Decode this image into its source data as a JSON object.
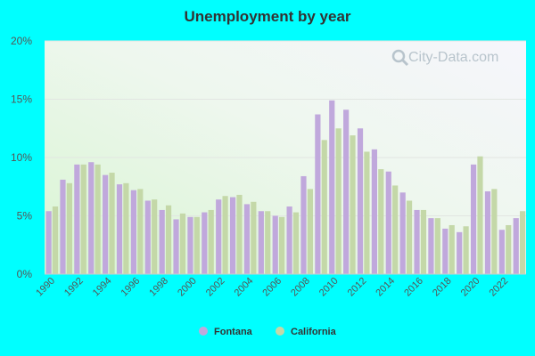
{
  "watermark": "City-Data.com",
  "chart_data": {
    "type": "bar",
    "title": "Unemployment by year",
    "xlabel": "",
    "ylabel": "",
    "ylim": [
      0,
      20
    ],
    "y_ticks": [
      "0%",
      "5%",
      "10%",
      "15%",
      "20%"
    ],
    "x_tick_labels": [
      "1990",
      "1992",
      "1994",
      "1996",
      "1998",
      "2000",
      "2002",
      "2004",
      "2006",
      "2008",
      "2010",
      "2012",
      "2014",
      "2016",
      "2018",
      "2020",
      "2022"
    ],
    "categories": [
      "1990",
      "1991",
      "1992",
      "1993",
      "1994",
      "1995",
      "1996",
      "1997",
      "1998",
      "1999",
      "2000",
      "2001",
      "2002",
      "2003",
      "2004",
      "2005",
      "2006",
      "2007",
      "2008",
      "2009",
      "2010",
      "2011",
      "2012",
      "2013",
      "2014",
      "2015",
      "2016",
      "2017",
      "2018",
      "2019",
      "2020",
      "2021",
      "2022",
      "2023"
    ],
    "series": [
      {
        "name": "Fontana",
        "color": "#c0a8dc",
        "values": [
          5.4,
          8.1,
          9.4,
          9.6,
          8.5,
          7.7,
          7.2,
          6.3,
          5.5,
          4.7,
          4.9,
          5.3,
          6.4,
          6.6,
          6.0,
          5.4,
          5.0,
          5.8,
          8.4,
          13.7,
          14.9,
          14.1,
          12.5,
          10.7,
          8.8,
          7.0,
          5.5,
          4.8,
          3.9,
          3.6,
          9.4,
          7.1,
          3.8,
          4.8
        ]
      },
      {
        "name": "California",
        "color": "#c4d8a8",
        "values": [
          5.8,
          7.8,
          9.4,
          9.4,
          8.7,
          7.8,
          7.3,
          6.4,
          5.9,
          5.2,
          4.9,
          5.5,
          6.7,
          6.8,
          6.2,
          5.4,
          4.9,
          5.3,
          7.3,
          11.5,
          12.5,
          11.9,
          10.5,
          9.0,
          7.6,
          6.3,
          5.5,
          4.8,
          4.2,
          4.1,
          10.1,
          7.3,
          4.2,
          5.4
        ]
      }
    ],
    "legend_position": "bottom",
    "grid": true
  }
}
